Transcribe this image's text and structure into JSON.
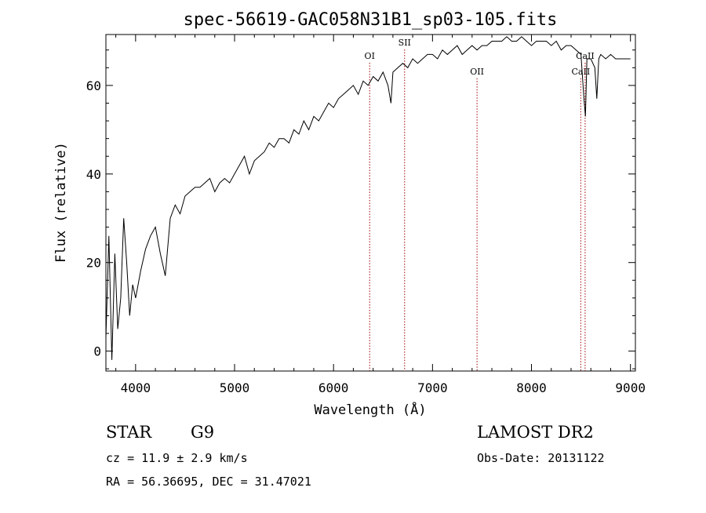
{
  "chart_data": {
    "type": "line",
    "title": "spec-56619-GAC058N31B1_sp03-105.fits",
    "xlabel": "Wavelength (Å)",
    "ylabel": "Flux (relative)",
    "xlim": [
      3700,
      9050
    ],
    "ylim": [
      -4.5,
      71.5
    ],
    "xticks": [
      4000,
      5000,
      6000,
      7000,
      8000,
      9000
    ],
    "yticks": [
      0,
      20,
      40,
      60
    ],
    "grid": false,
    "legend": "none",
    "series": [
      {
        "x": [
          3700,
          3730,
          3760,
          3790,
          3820,
          3850,
          3880,
          3910,
          3940,
          3970,
          4000,
          4050,
          4100,
          4150,
          4200,
          4250,
          4300,
          4350,
          4400,
          4450,
          4500,
          4550,
          4600,
          4650,
          4700,
          4750,
          4800,
          4850,
          4900,
          4950,
          5000,
          5050,
          5100,
          5150,
          5200,
          5250,
          5300,
          5350,
          5400,
          5450,
          5500,
          5550,
          5600,
          5650,
          5700,
          5750,
          5800,
          5850,
          5900,
          5950,
          6000,
          6050,
          6100,
          6150,
          6200,
          6250,
          6300,
          6350,
          6400,
          6450,
          6500,
          6550,
          6580,
          6600,
          6650,
          6700,
          6750,
          6800,
          6850,
          6900,
          6950,
          7000,
          7050,
          7100,
          7150,
          7200,
          7250,
          7300,
          7350,
          7400,
          7450,
          7500,
          7550,
          7600,
          7650,
          7700,
          7750,
          7800,
          7850,
          7900,
          7950,
          8000,
          8050,
          8100,
          8150,
          8200,
          8250,
          8300,
          8350,
          8400,
          8450,
          8500,
          8530,
          8545,
          8560,
          8600,
          8640,
          8660,
          8680,
          8700,
          8750,
          8800,
          8850,
          8900,
          8950,
          9000
        ],
        "y": [
          3,
          26,
          -2,
          22,
          5,
          12,
          30,
          20,
          8,
          15,
          12,
          18,
          23,
          26,
          28,
          22,
          17,
          30,
          33,
          31,
          35,
          36,
          37,
          37,
          38,
          39,
          36,
          38,
          39,
          38,
          40,
          42,
          44,
          40,
          43,
          44,
          45,
          47,
          46,
          48,
          48,
          47,
          50,
          49,
          52,
          50,
          53,
          52,
          54,
          56,
          55,
          57,
          58,
          59,
          60,
          58,
          61,
          60,
          62,
          61,
          63,
          60,
          56,
          63,
          64,
          65,
          64,
          66,
          65,
          66,
          67,
          67,
          66,
          68,
          67,
          68,
          69,
          67,
          68,
          69,
          68,
          69,
          69,
          70,
          70,
          70,
          71,
          70,
          70,
          71,
          70,
          69,
          70,
          70,
          70,
          69,
          70,
          68,
          69,
          69,
          68,
          67,
          57,
          53,
          66,
          66,
          64,
          57,
          66,
          67,
          66,
          67,
          66,
          66,
          66,
          66
        ]
      }
    ],
    "line_markers": [
      {
        "label": "OI",
        "x": 6365,
        "label_y": 66
      },
      {
        "label": "SII",
        "x": 6718,
        "label_y": 69
      },
      {
        "label": "OII",
        "x": 7450,
        "label_y": 62.5
      },
      {
        "label": "CaII",
        "x": 8498,
        "label_y": 62.5
      },
      {
        "label": "CaII",
        "x": 8542,
        "label_y": 66
      }
    ]
  },
  "info": {
    "object_class": "STAR",
    "subclass": "G9",
    "survey": "LAMOST DR2",
    "cz": "cz = 11.9 ± 2.9 km/s",
    "obs_date": "Obs-Date: 20131122",
    "coords": "RA =  56.36695, DEC =  31.47021"
  },
  "colors": {
    "spectrum": "#000000",
    "marker_lines": "#a00000"
  }
}
